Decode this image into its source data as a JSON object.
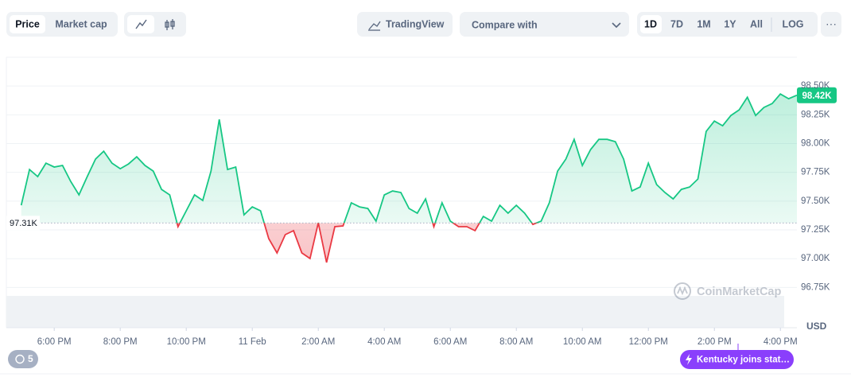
{
  "toolbar": {
    "tabs": [
      "Price",
      "Market cap"
    ],
    "tradingview": "TradingView",
    "compare": "Compare with",
    "ranges": [
      "1D",
      "7D",
      "1M",
      "1Y",
      "All"
    ],
    "log": "LOG"
  },
  "watermark": "CoinMarketCap",
  "events_count": "5",
  "news": "Kentucky joins stat…",
  "chart_data": {
    "type": "line",
    "y_unit": "USD",
    "up_color": "#16c784",
    "down_color": "#ea3943",
    "baseline": {
      "value": 97310,
      "label": "97.31K"
    },
    "current": {
      "value": 98420,
      "label": "98.42K"
    },
    "x": [
      17,
      17.25,
      17.5,
      17.75,
      18,
      18.25,
      18.5,
      18.75,
      19,
      19.25,
      19.5,
      19.75,
      20,
      20.25,
      20.5,
      20.75,
      21,
      21.25,
      21.5,
      21.75,
      22,
      22.25,
      22.5,
      22.75,
      23,
      23.25,
      23.5,
      23.75,
      24,
      24.25,
      24.5,
      24.75,
      25,
      25.25,
      25.5,
      25.75,
      26,
      26.25,
      26.5,
      26.75,
      27,
      27.25,
      27.5,
      27.75,
      28,
      28.25,
      28.5,
      28.75,
      29,
      29.25,
      29.5,
      29.75,
      30,
      30.25,
      30.5,
      30.75,
      31,
      31.25,
      31.5,
      31.75,
      32,
      32.25,
      32.5,
      32.75,
      33,
      33.25,
      33.5,
      33.75,
      34,
      34.25,
      34.5,
      34.75,
      35,
      35.25,
      35.5,
      35.75,
      36,
      36.25,
      36.5,
      36.75,
      37,
      37.25,
      37.5,
      37.75,
      38,
      38.25,
      38.5,
      38.75,
      39,
      39.25,
      39.5,
      39.75,
      40,
      40.25,
      40.5
    ],
    "values": [
      97464,
      97775,
      97713,
      97830,
      97796,
      97810,
      97671,
      97554,
      97713,
      97865,
      97934,
      97830,
      97782,
      97823,
      97885,
      97810,
      97761,
      97602,
      97554,
      97278,
      97416,
      97554,
      97506,
      97761,
      98210,
      97775,
      97796,
      97381,
      97450,
      97416,
      97174,
      97050,
      97209,
      97243,
      97050,
      97001,
      97312,
      96967,
      97278,
      97285,
      97485,
      97450,
      97436,
      97326,
      97554,
      97588,
      97575,
      97436,
      97395,
      97519,
      97278,
      97485,
      97326,
      97278,
      97278,
      97243,
      97367,
      97326,
      97464,
      97395,
      97464,
      97395,
      97298,
      97326,
      97485,
      97761,
      97865,
      98037,
      97810,
      97948,
      98037,
      98037,
      98017,
      97865,
      97588,
      97623,
      97830,
      97644,
      97575,
      97519,
      97602,
      97623,
      97692,
      98106,
      98196,
      98155,
      98244,
      98293,
      98403,
      98244,
      98314,
      98348,
      98431,
      98390,
      98420
    ],
    "xlim": [
      16.55,
      40.5
    ],
    "xticks": [
      {
        "value": 18,
        "label": "6:00 PM"
      },
      {
        "value": 20,
        "label": "8:00 PM"
      },
      {
        "value": 22,
        "label": "10:00 PM"
      },
      {
        "value": 24,
        "label": "11 Feb"
      },
      {
        "value": 26,
        "label": "2:00 AM"
      },
      {
        "value": 28,
        "label": "4:00 AM"
      },
      {
        "value": 30,
        "label": "6:00 AM"
      },
      {
        "value": 32,
        "label": "8:00 AM"
      },
      {
        "value": 34,
        "label": "10:00 AM"
      },
      {
        "value": 36,
        "label": "12:00 PM"
      },
      {
        "value": 38,
        "label": "2:00 PM"
      },
      {
        "value": 40,
        "label": "4:00 PM"
      }
    ],
    "ylim": [
      96400,
      98750
    ],
    "yticks": [
      {
        "value": 96750,
        "label": "96.75K"
      },
      {
        "value": 97000,
        "label": "97.00K"
      },
      {
        "value": 97250,
        "label": "97.25K"
      },
      {
        "value": 97500,
        "label": "97.50K"
      },
      {
        "value": 97750,
        "label": "97.75K"
      },
      {
        "value": 98000,
        "label": "98.00K"
      },
      {
        "value": 98250,
        "label": "98.25K"
      },
      {
        "value": 98500,
        "label": "98.50K"
      }
    ],
    "grid": true
  }
}
